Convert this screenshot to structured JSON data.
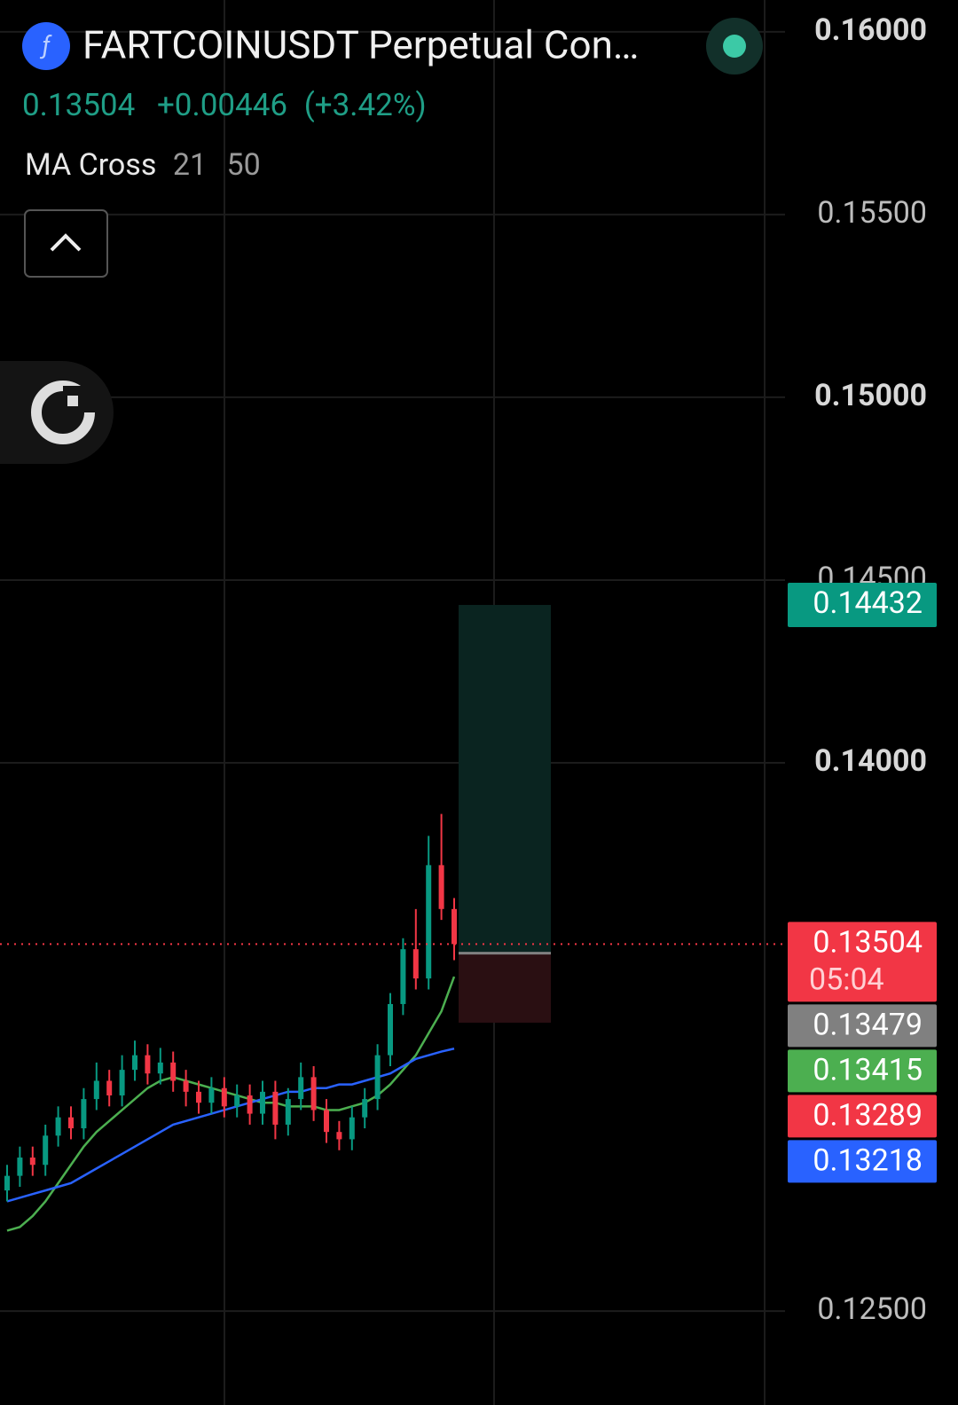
{
  "header": {
    "symbol": "FARTCOINUSDT Perpetual Con…",
    "change": "+0.00446",
    "change_pct": "(+3.42%)",
    "indicator": "MA Cross",
    "params": [
      21,
      50
    ]
  },
  "chart_data": {
    "type": "candlestick",
    "open": [
      0.1283,
      0.1287,
      0.1292,
      0.129,
      0.1298,
      0.1303,
      0.13,
      0.1308,
      0.1313,
      0.1309,
      0.1316,
      0.132,
      0.1315,
      0.1318,
      0.1313,
      0.131,
      0.1307,
      0.1311,
      0.1306,
      0.1309,
      0.1304,
      0.131,
      0.1301,
      0.1308,
      0.1314,
      0.1305,
      0.1299,
      0.1297,
      0.1303,
      0.1308,
      0.132,
      0.1334,
      0.1349,
      0.1341,
      0.1372,
      0.136
    ],
    "high": [
      0.129,
      0.1295,
      0.1295,
      0.1301,
      0.1306,
      0.1306,
      0.1311,
      0.1318,
      0.1316,
      0.132,
      0.1324,
      0.1323,
      0.1322,
      0.1321,
      0.1316,
      0.1313,
      0.1314,
      0.1314,
      0.1312,
      0.1312,
      0.1313,
      0.1313,
      0.1311,
      0.1318,
      0.1317,
      0.1308,
      0.1302,
      0.1306,
      0.1311,
      0.1323,
      0.1337,
      0.1352,
      0.136,
      0.138,
      0.1386,
      0.1363
    ],
    "low": [
      0.128,
      0.1284,
      0.1287,
      0.1287,
      0.1295,
      0.1297,
      0.1297,
      0.1305,
      0.1306,
      0.1306,
      0.1313,
      0.1312,
      0.1312,
      0.131,
      0.1306,
      0.1304,
      0.1304,
      0.1303,
      0.1303,
      0.1301,
      0.1301,
      0.1297,
      0.1298,
      0.1305,
      0.1302,
      0.1296,
      0.1294,
      0.1294,
      0.13,
      0.1305,
      0.1317,
      0.1331,
      0.1338,
      0.1338,
      0.1357,
      0.1346
    ],
    "close": [
      0.1287,
      0.1292,
      0.129,
      0.1298,
      0.1303,
      0.13,
      0.1308,
      0.1313,
      0.1309,
      0.1316,
      0.132,
      0.1315,
      0.1318,
      0.1313,
      0.131,
      0.1307,
      0.1311,
      0.1306,
      0.1309,
      0.1304,
      0.131,
      0.1301,
      0.1308,
      0.1314,
      0.1305,
      0.1299,
      0.1297,
      0.1303,
      0.1308,
      0.132,
      0.1334,
      0.1349,
      0.1341,
      0.1372,
      0.136,
      0.13504
    ],
    "up_color": "#089981",
    "down_color": "#f23645",
    "ma_lines": [
      {
        "color": "#4caf50",
        "values": [
          0.1272,
          0.1273,
          0.1276,
          0.128,
          0.1285,
          0.129,
          0.1295,
          0.1299,
          0.1302,
          0.1305,
          0.1308,
          0.1311,
          0.1313,
          0.1314,
          0.1313,
          0.1312,
          0.1311,
          0.131,
          0.1309,
          0.1308,
          0.1307,
          0.1307,
          0.1306,
          0.1306,
          0.1306,
          0.1305,
          0.1305,
          0.1306,
          0.1307,
          0.1309,
          0.1312,
          0.1316,
          0.132,
          0.1326,
          0.1332,
          0.13415
        ]
      },
      {
        "color": "#2962ff",
        "values": [
          0.128,
          0.1281,
          0.1282,
          0.1283,
          0.1284,
          0.1285,
          0.1287,
          0.1289,
          0.1291,
          0.1293,
          0.1295,
          0.1297,
          0.1299,
          0.1301,
          0.1302,
          0.1303,
          0.1304,
          0.1305,
          0.1306,
          0.1307,
          0.1308,
          0.1309,
          0.131,
          0.131,
          0.1311,
          0.1311,
          0.1312,
          0.1312,
          0.1313,
          0.1314,
          0.1315,
          0.1317,
          0.1319,
          0.132,
          0.1321,
          0.13218
        ]
      }
    ],
    "position": {
      "entry": 0.13479,
      "target": 0.14432,
      "stop": 0.13289,
      "entry_color": "#808080"
    },
    "countdown": "05:04",
    "ylim": [
      0.12243,
      0.16087
    ],
    "yticks": [
      {
        "value": 0.16,
        "label": "0.16000"
      },
      {
        "value": 0.155,
        "label": "0.15500"
      },
      {
        "value": 0.15,
        "label": "0.15000"
      },
      {
        "value": 0.145,
        "label": "0.14500"
      },
      {
        "value": 0.14,
        "label": "0.14000"
      },
      {
        "value": 0.125,
        "label": "0.12500"
      }
    ],
    "grid": true
  }
}
